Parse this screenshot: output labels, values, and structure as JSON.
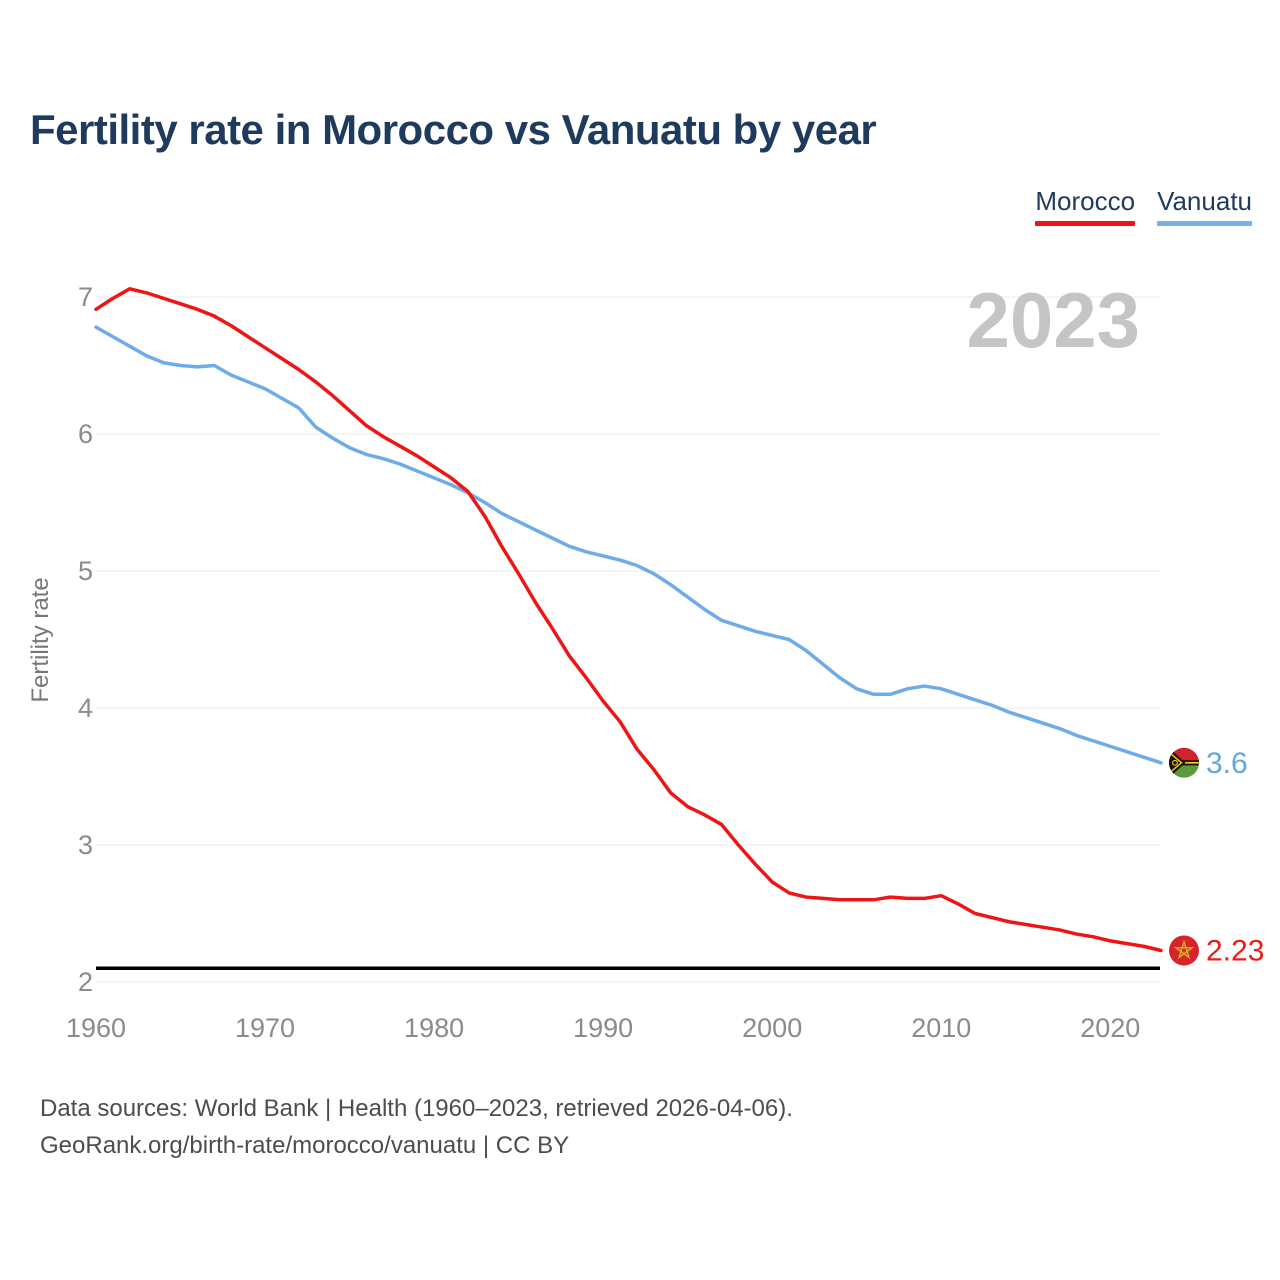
{
  "title": "Fertility rate in Morocco vs Vanuatu by year",
  "watermark": "2023",
  "ylabel": "Fertility rate",
  "legend": [
    {
      "label": "Morocco",
      "color": "#ed1515"
    },
    {
      "label": "Vanuatu",
      "color": "#74b2e8"
    }
  ],
  "endpoints": [
    {
      "series": "Morocco",
      "label": "2.23",
      "color": "#ed1c16",
      "flag": "morocco-flag"
    },
    {
      "series": "Vanuatu",
      "label": "3.6",
      "color": "#5fa8e4",
      "flag": "vanuatu-flag"
    }
  ],
  "footer": {
    "line1": "Data sources: World Bank | Health (1960–2023, retrieved 2026-04-06).",
    "line2": "GeoRank.org/birth-rate/morocco/vanuatu | CC BY"
  },
  "chart_data": {
    "type": "line",
    "title": "Fertility rate in Morocco vs Vanuatu by year",
    "xlabel": "",
    "ylabel": "Fertility rate",
    "ylim": [
      2,
      7
    ],
    "yticks": [
      2,
      3,
      4,
      5,
      6,
      7
    ],
    "xticks": [
      1960,
      1970,
      1980,
      1990,
      2000,
      2010,
      2020
    ],
    "grid": true,
    "legend_position": "top-right",
    "reference_line": {
      "value": 2.1,
      "color": "#000000"
    },
    "x": [
      1960,
      1961,
      1962,
      1963,
      1964,
      1965,
      1966,
      1967,
      1968,
      1969,
      1970,
      1971,
      1972,
      1973,
      1974,
      1975,
      1976,
      1977,
      1978,
      1979,
      1980,
      1981,
      1982,
      1983,
      1984,
      1985,
      1986,
      1987,
      1988,
      1989,
      1990,
      1991,
      1992,
      1993,
      1994,
      1995,
      1996,
      1997,
      1998,
      1999,
      2000,
      2001,
      2002,
      2003,
      2004,
      2005,
      2006,
      2007,
      2008,
      2009,
      2010,
      2011,
      2012,
      2013,
      2014,
      2015,
      2016,
      2017,
      2018,
      2019,
      2020,
      2021,
      2022,
      2023
    ],
    "series": [
      {
        "name": "Morocco",
        "color": "#ed1515",
        "final_value": 2.23,
        "values": [
          6.91,
          6.99,
          7.06,
          7.03,
          6.99,
          6.95,
          6.91,
          6.86,
          6.79,
          6.71,
          6.63,
          6.55,
          6.47,
          6.38,
          6.28,
          6.17,
          6.06,
          5.98,
          5.91,
          5.84,
          5.76,
          5.68,
          5.58,
          5.4,
          5.18,
          4.98,
          4.77,
          4.58,
          4.38,
          4.22,
          4.05,
          3.9,
          3.7,
          3.55,
          3.38,
          3.28,
          3.22,
          3.15,
          3.0,
          2.86,
          2.73,
          2.65,
          2.62,
          2.61,
          2.6,
          2.6,
          2.6,
          2.62,
          2.61,
          2.61,
          2.63,
          2.57,
          2.5,
          2.47,
          2.44,
          2.42,
          2.4,
          2.38,
          2.35,
          2.33,
          2.3,
          2.28,
          2.26,
          2.23
        ]
      },
      {
        "name": "Vanuatu",
        "color": "#6dace8",
        "final_value": 3.6,
        "values": [
          6.78,
          6.71,
          6.64,
          6.57,
          6.52,
          6.5,
          6.49,
          6.5,
          6.43,
          6.38,
          6.33,
          6.26,
          6.19,
          6.05,
          5.97,
          5.9,
          5.85,
          5.82,
          5.78,
          5.73,
          5.68,
          5.63,
          5.57,
          5.5,
          5.42,
          5.36,
          5.3,
          5.24,
          5.18,
          5.14,
          5.11,
          5.08,
          5.04,
          4.98,
          4.9,
          4.81,
          4.72,
          4.64,
          4.6,
          4.56,
          4.53,
          4.5,
          4.42,
          4.32,
          4.22,
          4.14,
          4.1,
          4.1,
          4.14,
          4.16,
          4.14,
          4.1,
          4.06,
          4.02,
          3.97,
          3.93,
          3.89,
          3.85,
          3.8,
          3.76,
          3.72,
          3.68,
          3.64,
          3.6
        ]
      }
    ]
  }
}
